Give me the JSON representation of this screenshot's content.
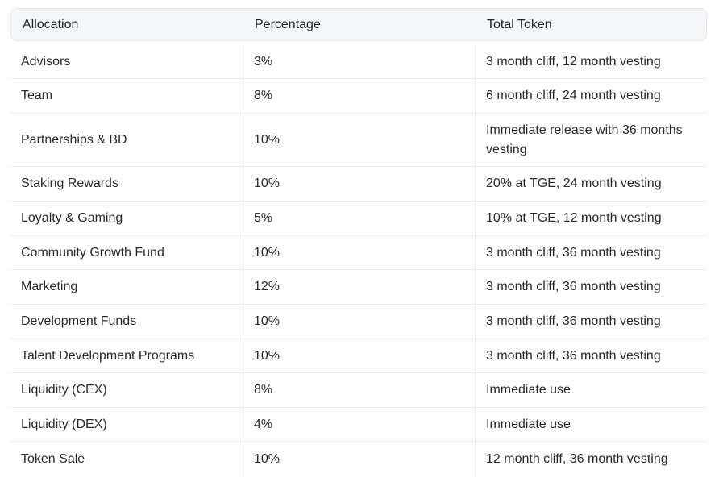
{
  "table": {
    "headers": [
      "Allocation",
      "Percentage",
      "Total Token"
    ],
    "rows": [
      {
        "allocation": "Advisors",
        "percentage": "3%",
        "total_token": "3 month cliff, 12 month vesting"
      },
      {
        "allocation": "Team",
        "percentage": "8%",
        "total_token": "6 month cliff, 24 month vesting"
      },
      {
        "allocation": "Partnerships & BD",
        "percentage": "10%",
        "total_token": "Immediate release with 36 months vesting"
      },
      {
        "allocation": "Staking Rewards",
        "percentage": "10%",
        "total_token": "20% at TGE, 24 month vesting"
      },
      {
        "allocation": "Loyalty & Gaming",
        "percentage": "5%",
        "total_token": "10% at TGE, 12 month vesting"
      },
      {
        "allocation": "Community Growth Fund",
        "percentage": "10%",
        "total_token": "3 month cliff, 36 month vesting"
      },
      {
        "allocation": "Marketing",
        "percentage": "12%",
        "total_token": "3 month cliff, 36 month vesting"
      },
      {
        "allocation": "Development Funds",
        "percentage": "10%",
        "total_token": "3 month cliff, 36 month vesting"
      },
      {
        "allocation": "Talent Development Programs",
        "percentage": "10%",
        "total_token": "3 month cliff, 36 month vesting"
      },
      {
        "allocation": "Liquidity (CEX)",
        "percentage": "8%",
        "total_token": "Immediate use"
      },
      {
        "allocation": "Liquidity (DEX)",
        "percentage": "4%",
        "total_token": "Immediate use"
      },
      {
        "allocation": "Token Sale",
        "percentage": "10%",
        "total_token": "12 month cliff, 36 month vesting"
      }
    ]
  }
}
